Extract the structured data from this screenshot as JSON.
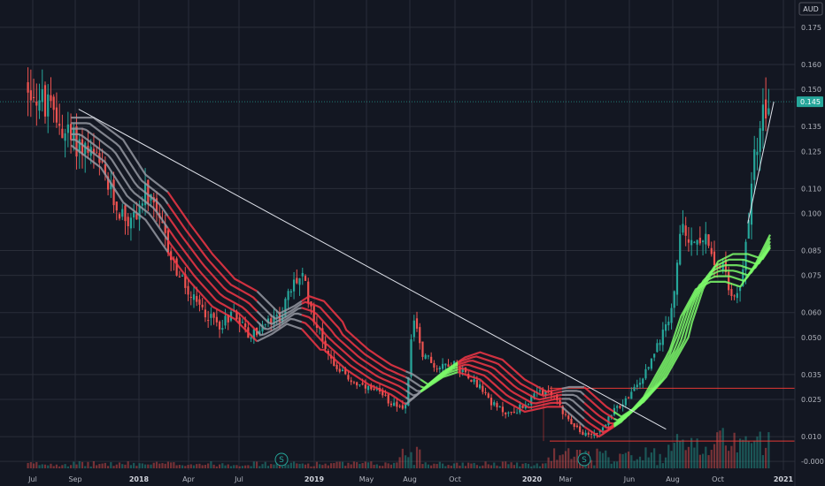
{
  "currency": "AUD",
  "last_price": "0.145",
  "colors": {
    "background": "#131722",
    "grid": "#2a2e39",
    "up": "#26a69a",
    "down": "#ef5350",
    "ribbon_bear": "#f23645",
    "ribbon_neutral": "#9598a1",
    "ribbon_bull": "#7cfc6a",
    "trendline": "#e0e3eb",
    "level_line": "#e53935",
    "price_tag": "#26a69a"
  },
  "dividend_markers": [
    "S",
    "S"
  ],
  "chart_data": {
    "type": "candlestick",
    "y_ticks": [
      "0.175",
      "0.160",
      "0.150",
      "0.145",
      "0.135",
      "0.125",
      "0.110",
      "0.100",
      "0.085",
      "0.075",
      "0.060",
      "0.050",
      "0.035",
      "0.025",
      "0.010",
      "-0.000"
    ],
    "x_ticks": [
      "Jul",
      "Sep",
      "2018",
      "Apr",
      "Jul",
      "2019",
      "May",
      "Aug",
      "Oct",
      "2020",
      "Mar",
      "Jun",
      "Aug",
      "Oct",
      "2021"
    ],
    "ylim": [
      -0.0035,
      0.186
    ],
    "price_path": [
      {
        "t": 0,
        "v": 0.152
      },
      {
        "t": 2,
        "v": 0.145
      },
      {
        "t": 4,
        "v": 0.138
      },
      {
        "t": 6,
        "v": 0.13
      },
      {
        "t": 8,
        "v": 0.126
      },
      {
        "t": 10,
        "v": 0.118
      },
      {
        "t": 12,
        "v": 0.103
      },
      {
        "t": 14,
        "v": 0.096
      },
      {
        "t": 16,
        "v": 0.108
      },
      {
        "t": 18,
        "v": 0.095
      },
      {
        "t": 20,
        "v": 0.078
      },
      {
        "t": 22,
        "v": 0.066
      },
      {
        "t": 24,
        "v": 0.06
      },
      {
        "t": 26,
        "v": 0.055
      },
      {
        "t": 28,
        "v": 0.061
      },
      {
        "t": 30,
        "v": 0.05
      },
      {
        "t": 32,
        "v": 0.055
      },
      {
        "t": 34,
        "v": 0.058
      },
      {
        "t": 36,
        "v": 0.072
      },
      {
        "t": 37,
        "v": 0.075
      },
      {
        "t": 39,
        "v": 0.055
      },
      {
        "t": 41,
        "v": 0.041
      },
      {
        "t": 43,
        "v": 0.034
      },
      {
        "t": 45,
        "v": 0.03
      },
      {
        "t": 47,
        "v": 0.028
      },
      {
        "t": 49,
        "v": 0.024
      },
      {
        "t": 51,
        "v": 0.022
      },
      {
        "t": 52,
        "v": 0.06
      },
      {
        "t": 53,
        "v": 0.045
      },
      {
        "t": 55,
        "v": 0.038
      },
      {
        "t": 57,
        "v": 0.04
      },
      {
        "t": 59,
        "v": 0.036
      },
      {
        "t": 61,
        "v": 0.03
      },
      {
        "t": 63,
        "v": 0.022
      },
      {
        "t": 65,
        "v": 0.019
      },
      {
        "t": 67,
        "v": 0.023
      },
      {
        "t": 69,
        "v": 0.028
      },
      {
        "t": 71,
        "v": 0.026
      },
      {
        "t": 73,
        "v": 0.016
      },
      {
        "t": 75,
        "v": 0.01
      },
      {
        "t": 77,
        "v": 0.012
      },
      {
        "t": 79,
        "v": 0.02
      },
      {
        "t": 81,
        "v": 0.026
      },
      {
        "t": 83,
        "v": 0.034
      },
      {
        "t": 85,
        "v": 0.048
      },
      {
        "t": 87,
        "v": 0.064
      },
      {
        "t": 88,
        "v": 0.096
      },
      {
        "t": 89,
        "v": 0.085
      },
      {
        "t": 90,
        "v": 0.094
      },
      {
        "t": 91,
        "v": 0.09
      },
      {
        "t": 92,
        "v": 0.085
      },
      {
        "t": 93,
        "v": 0.08
      },
      {
        "t": 94,
        "v": 0.075
      },
      {
        "t": 95,
        "v": 0.066
      },
      {
        "t": 96,
        "v": 0.073
      },
      {
        "t": 97,
        "v": 0.095
      },
      {
        "t": 98,
        "v": 0.125
      },
      {
        "t": 99,
        "v": 0.14
      },
      {
        "t": 100,
        "v": 0.145
      }
    ],
    "ribbon": {
      "lines": 6,
      "path": [
        {
          "t": 6,
          "v": 0.133
        },
        {
          "t": 10,
          "v": 0.124
        },
        {
          "t": 13,
          "v": 0.11
        },
        {
          "t": 16,
          "v": 0.103
        },
        {
          "t": 19,
          "v": 0.09
        },
        {
          "t": 22,
          "v": 0.078
        },
        {
          "t": 25,
          "v": 0.068
        },
        {
          "t": 28,
          "v": 0.063
        },
        {
          "t": 31,
          "v": 0.054
        },
        {
          "t": 33,
          "v": 0.057
        },
        {
          "t": 35,
          "v": 0.061
        },
        {
          "t": 37,
          "v": 0.059
        },
        {
          "t": 40,
          "v": 0.049
        },
        {
          "t": 43,
          "v": 0.041
        },
        {
          "t": 46,
          "v": 0.035
        },
        {
          "t": 49,
          "v": 0.031
        },
        {
          "t": 51,
          "v": 0.027
        },
        {
          "t": 53,
          "v": 0.032
        },
        {
          "t": 56,
          "v": 0.038
        },
        {
          "t": 58,
          "v": 0.04
        },
        {
          "t": 61,
          "v": 0.037
        },
        {
          "t": 64,
          "v": 0.029
        },
        {
          "t": 67,
          "v": 0.024
        },
        {
          "t": 70,
          "v": 0.026
        },
        {
          "t": 72,
          "v": 0.026
        },
        {
          "t": 75,
          "v": 0.018
        },
        {
          "t": 77,
          "v": 0.014
        },
        {
          "t": 80,
          "v": 0.02
        },
        {
          "t": 83,
          "v": 0.03
        },
        {
          "t": 86,
          "v": 0.046
        },
        {
          "t": 88,
          "v": 0.064
        },
        {
          "t": 90,
          "v": 0.075
        },
        {
          "t": 92,
          "v": 0.078
        },
        {
          "t": 94,
          "v": 0.078
        },
        {
          "t": 96,
          "v": 0.076
        },
        {
          "t": 98,
          "v": 0.085
        },
        {
          "t": 100,
          "v": 0.097
        }
      ],
      "phases": [
        {
          "from": 6,
          "to": 19,
          "style": "neutral"
        },
        {
          "from": 19,
          "to": 31,
          "style": "bear"
        },
        {
          "from": 31,
          "to": 37,
          "style": "neutral"
        },
        {
          "from": 37,
          "to": 51,
          "style": "bear"
        },
        {
          "from": 51,
          "to": 53,
          "style": "neutral"
        },
        {
          "from": 53,
          "to": 58,
          "style": "bull"
        },
        {
          "from": 58,
          "to": 72,
          "style": "bear"
        },
        {
          "from": 72,
          "to": 75,
          "style": "neutral"
        },
        {
          "from": 75,
          "to": 79,
          "style": "bear"
        },
        {
          "from": 79,
          "to": 100,
          "style": "bull"
        }
      ]
    },
    "trendlines": [
      {
        "x1": 7,
        "y1": 0.142,
        "x2": 86,
        "y2": 0.013
      },
      {
        "x1": 97,
        "y1": 0.096,
        "x2": 100.5,
        "y2": 0.145
      }
    ],
    "levels": [
      {
        "from": 70,
        "value": 0.0295
      },
      {
        "from": 70,
        "value": 0.0082
      }
    ]
  }
}
